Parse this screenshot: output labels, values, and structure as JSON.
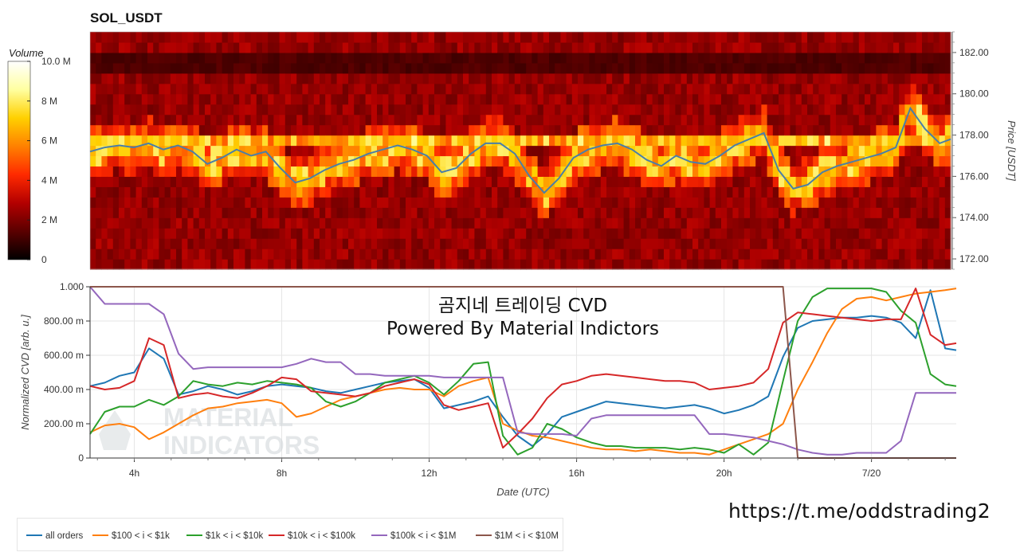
{
  "header": {
    "title": "SOL_USDT"
  },
  "watermark": {
    "line1": "곰지네 트레이딩 CVD",
    "line2": "Powered By Material Indictors"
  },
  "channel_link": "https://t.me/oddstrading2",
  "logo": {
    "line1": "MATERIAL",
    "line2": "INDICATORS"
  },
  "legend": [
    {
      "label": "all orders",
      "color": "#1f77b4"
    },
    {
      "label": "$100 < i < $1k",
      "color": "#ff7f0e"
    },
    {
      "label": "$1k < i < $10k",
      "color": "#2ca02c"
    },
    {
      "label": "$10k < i < $100k",
      "color": "#d62728"
    },
    {
      "label": "$100k < i < $1M",
      "color": "#9467bd"
    },
    {
      "label": "$1M < i < $10M",
      "color": "#8c564b"
    }
  ],
  "chart_data": [
    {
      "type": "heatmap",
      "title": "SOL_USDT",
      "ylabel": "Price [USDT]",
      "ylim": [
        171.5,
        183.0
      ],
      "yticks": [
        "172.00",
        "174.00",
        "176.00",
        "178.00",
        "180.00",
        "182.00"
      ],
      "ytick_values": [
        172,
        174,
        176,
        178,
        180,
        182
      ],
      "xlim_hours": [
        2.8,
        26.3
      ],
      "colorbar": {
        "title": "Volume",
        "range": [
          0,
          10000000
        ],
        "ticks": [
          "0",
          "2 M",
          "4 M",
          "6 M",
          "8 M",
          "10.0 M"
        ],
        "tick_values": [
          0,
          2000000,
          4000000,
          6000000,
          8000000,
          10000000
        ],
        "colormap": [
          "#000000",
          "#5a0000",
          "#b30000",
          "#ff2a00",
          "#ff8000",
          "#ffd000",
          "#ffffa0",
          "#ffffff"
        ]
      },
      "price_bins": [
        172,
        173,
        174,
        175,
        176,
        177,
        178,
        179,
        180,
        181,
        182
      ],
      "price_series": {
        "name": "price",
        "color": "#4a7fa8",
        "x_hours": [
          2.8,
          3.2,
          3.6,
          4.0,
          4.4,
          4.8,
          5.2,
          5.6,
          6.0,
          6.4,
          6.8,
          7.2,
          7.6,
          8.0,
          8.4,
          8.8,
          9.2,
          9.6,
          10.0,
          10.4,
          10.8,
          11.2,
          11.6,
          12.0,
          12.4,
          12.8,
          13.2,
          13.6,
          14.0,
          14.4,
          14.8,
          15.2,
          15.6,
          16.0,
          16.4,
          16.8,
          17.2,
          17.6,
          18.0,
          18.4,
          18.8,
          19.2,
          19.6,
          20.0,
          20.4,
          20.8,
          21.2,
          21.6,
          22.0,
          22.4,
          22.8,
          23.2,
          23.6,
          24.0,
          24.4,
          24.8,
          25.2,
          25.6,
          26.0,
          26.3
        ],
        "y": [
          177.2,
          177.4,
          177.5,
          177.4,
          177.6,
          177.3,
          177.5,
          177.2,
          176.6,
          176.9,
          177.3,
          177.0,
          177.2,
          176.4,
          175.7,
          175.9,
          176.3,
          176.6,
          176.8,
          177.1,
          177.3,
          177.5,
          177.3,
          177.0,
          176.2,
          176.4,
          177.1,
          177.6,
          177.6,
          177.1,
          176.0,
          175.2,
          175.9,
          176.9,
          177.3,
          177.5,
          177.6,
          177.3,
          176.8,
          176.5,
          177.0,
          176.7,
          176.6,
          177.0,
          177.5,
          177.8,
          178.1,
          176.3,
          175.4,
          175.6,
          176.2,
          176.5,
          176.7,
          176.9,
          177.1,
          177.4,
          179.3,
          178.3,
          177.6,
          177.8
        ]
      }
    },
    {
      "type": "line",
      "xlabel": "Date (UTC)",
      "ylabel": "Normalized CVD [arb. u.]",
      "ylim": [
        0,
        1.0
      ],
      "yticks": [
        "0",
        "200.00 m",
        "400.00 m",
        "600.00 m",
        "800.00 m",
        "1.000"
      ],
      "ytick_values": [
        0,
        0.2,
        0.4,
        0.6,
        0.8,
        1.0
      ],
      "xlim_hours": [
        2.8,
        26.3
      ],
      "xticks": [
        "4h",
        "8h",
        "12h",
        "16h",
        "20h",
        "7/20"
      ],
      "xtick_values": [
        4,
        8,
        12,
        16,
        20,
        24
      ],
      "x_hours": [
        2.8,
        3.2,
        3.6,
        4.0,
        4.4,
        4.8,
        5.2,
        5.6,
        6.0,
        6.4,
        6.8,
        7.2,
        7.6,
        8.0,
        8.4,
        8.8,
        9.2,
        9.6,
        10.0,
        10.4,
        10.8,
        11.2,
        11.6,
        12.0,
        12.4,
        12.8,
        13.2,
        13.6,
        14.0,
        14.4,
        14.8,
        15.2,
        15.6,
        16.0,
        16.4,
        16.8,
        17.2,
        17.6,
        18.0,
        18.4,
        18.8,
        19.2,
        19.6,
        20.0,
        20.4,
        20.8,
        21.2,
        21.6,
        22.0,
        22.4,
        22.8,
        23.2,
        23.6,
        24.0,
        24.4,
        24.8,
        25.2,
        25.6,
        26.0,
        26.3
      ],
      "series": [
        {
          "name": "all orders",
          "color": "#1f77b4",
          "values": [
            0.42,
            0.44,
            0.48,
            0.5,
            0.64,
            0.58,
            0.37,
            0.39,
            0.42,
            0.4,
            0.37,
            0.39,
            0.42,
            0.43,
            0.42,
            0.41,
            0.39,
            0.38,
            0.4,
            0.42,
            0.44,
            0.45,
            0.46,
            0.41,
            0.29,
            0.31,
            0.33,
            0.36,
            0.24,
            0.13,
            0.07,
            0.14,
            0.24,
            0.27,
            0.3,
            0.33,
            0.32,
            0.31,
            0.3,
            0.29,
            0.3,
            0.31,
            0.29,
            0.26,
            0.28,
            0.31,
            0.36,
            0.59,
            0.76,
            0.8,
            0.81,
            0.82,
            0.82,
            0.83,
            0.82,
            0.79,
            0.7,
            0.98,
            0.64,
            0.63
          ]
        },
        {
          "name": "$100 < i < $1k",
          "color": "#ff7f0e",
          "values": [
            0.15,
            0.19,
            0.2,
            0.18,
            0.11,
            0.15,
            0.2,
            0.25,
            0.29,
            0.3,
            0.32,
            0.33,
            0.34,
            0.32,
            0.24,
            0.26,
            0.3,
            0.34,
            0.36,
            0.38,
            0.4,
            0.41,
            0.4,
            0.4,
            0.36,
            0.42,
            0.45,
            0.47,
            0.2,
            0.16,
            0.13,
            0.12,
            0.1,
            0.08,
            0.06,
            0.05,
            0.05,
            0.04,
            0.05,
            0.04,
            0.03,
            0.03,
            0.02,
            0.05,
            0.08,
            0.11,
            0.14,
            0.2,
            0.4,
            0.56,
            0.73,
            0.87,
            0.93,
            0.94,
            0.92,
            0.94,
            0.96,
            0.97,
            0.98,
            0.99
          ]
        },
        {
          "name": "$1k < i < $10k",
          "color": "#2ca02c",
          "values": [
            0.14,
            0.27,
            0.3,
            0.3,
            0.34,
            0.31,
            0.36,
            0.45,
            0.43,
            0.42,
            0.44,
            0.43,
            0.45,
            0.44,
            0.43,
            0.41,
            0.33,
            0.3,
            0.33,
            0.38,
            0.44,
            0.46,
            0.48,
            0.44,
            0.37,
            0.45,
            0.55,
            0.56,
            0.13,
            0.02,
            0.06,
            0.2,
            0.17,
            0.12,
            0.09,
            0.07,
            0.07,
            0.06,
            0.06,
            0.06,
            0.05,
            0.06,
            0.05,
            0.03,
            0.08,
            0.02,
            0.09,
            0.45,
            0.8,
            0.94,
            0.99,
            0.99,
            0.99,
            0.99,
            0.97,
            0.86,
            0.79,
            0.49,
            0.43,
            0.42
          ]
        },
        {
          "name": "$10k < i < $100k",
          "color": "#d62728",
          "values": [
            0.42,
            0.4,
            0.41,
            0.45,
            0.7,
            0.66,
            0.35,
            0.37,
            0.38,
            0.36,
            0.35,
            0.38,
            0.42,
            0.47,
            0.46,
            0.39,
            0.38,
            0.37,
            0.36,
            0.38,
            0.42,
            0.44,
            0.46,
            0.43,
            0.31,
            0.28,
            0.3,
            0.32,
            0.06,
            0.14,
            0.23,
            0.35,
            0.43,
            0.45,
            0.48,
            0.49,
            0.48,
            0.47,
            0.46,
            0.45,
            0.45,
            0.44,
            0.4,
            0.41,
            0.42,
            0.44,
            0.52,
            0.79,
            0.85,
            0.84,
            0.83,
            0.82,
            0.81,
            0.8,
            0.81,
            0.81,
            0.99,
            0.72,
            0.66,
            0.67
          ]
        },
        {
          "name": "$100k < i < $1M",
          "color": "#9467bd",
          "values": [
            1.0,
            0.9,
            0.9,
            0.9,
            0.9,
            0.84,
            0.61,
            0.52,
            0.53,
            0.53,
            0.53,
            0.53,
            0.53,
            0.53,
            0.55,
            0.58,
            0.56,
            0.56,
            0.49,
            0.49,
            0.48,
            0.48,
            0.48,
            0.48,
            0.47,
            0.47,
            0.47,
            0.47,
            0.47,
            0.15,
            0.14,
            0.14,
            0.14,
            0.13,
            0.23,
            0.25,
            0.25,
            0.25,
            0.25,
            0.25,
            0.25,
            0.25,
            0.14,
            0.14,
            0.13,
            0.12,
            0.1,
            0.08,
            0.05,
            0.03,
            0.02,
            0.02,
            0.03,
            0.03,
            0.03,
            0.1,
            0.38,
            0.38,
            0.38,
            0.38
          ]
        },
        {
          "name": "$1M < i < $10M",
          "color": "#8c564b",
          "values": [
            1.0,
            1.0,
            1.0,
            1.0,
            1.0,
            1.0,
            1.0,
            1.0,
            1.0,
            1.0,
            1.0,
            1.0,
            1.0,
            1.0,
            1.0,
            1.0,
            1.0,
            1.0,
            1.0,
            1.0,
            1.0,
            1.0,
            1.0,
            1.0,
            1.0,
            1.0,
            1.0,
            1.0,
            1.0,
            1.0,
            1.0,
            1.0,
            1.0,
            1.0,
            1.0,
            1.0,
            1.0,
            1.0,
            1.0,
            1.0,
            1.0,
            1.0,
            1.0,
            1.0,
            1.0,
            1.0,
            1.0,
            1.0,
            0.0,
            0.0,
            0.0,
            0.0,
            0.0,
            0.0,
            0.0,
            0.0,
            0.0,
            0.0,
            0.0,
            0.0
          ]
        }
      ]
    }
  ]
}
